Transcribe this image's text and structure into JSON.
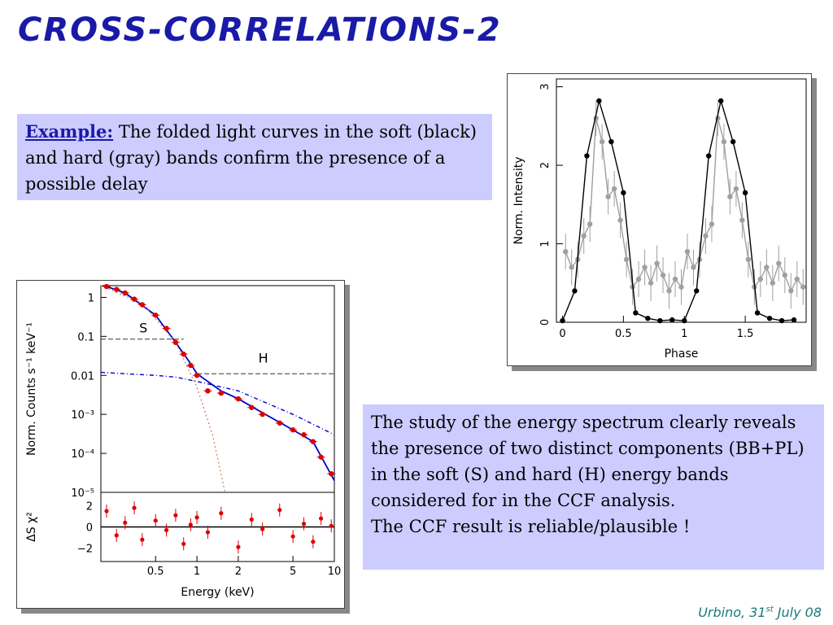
{
  "slide": {
    "title": "CROSS-CORRELATIONS-2",
    "footer_prefix": "Urbino, 31",
    "footer_sup": "st",
    "footer_suffix": " July 08"
  },
  "box1": {
    "lead": "Example:",
    "text": " The folded light curves in the soft (black) and hard (gray) bands confirm the presence of a possible delay"
  },
  "box2": {
    "text1": "The study of the energy spectrum clearly reveals the presence of two distinct components (BB+PL) in the soft (S) and hard (H) energy bands considered for in the CCF analysis.",
    "text2": "The CCF result is reliable/plausible !"
  },
  "colors": {
    "title": "#1a1aa8",
    "box": "#ccccff",
    "footer": "#1a7a7a"
  },
  "chart_data": [
    {
      "type": "line",
      "xlabel": "Phase",
      "ylabel": "Norm. Intensity",
      "xlim": [
        -0.05,
        2.0
      ],
      "ylim": [
        0,
        3.1
      ],
      "xticks": [
        "0",
        "0.5",
        "1",
        "1.5"
      ],
      "yticks": [
        "0",
        "1",
        "2",
        "3"
      ],
      "series": [
        {
          "color": "#000000",
          "x": [
            0,
            0.1,
            0.2,
            0.3,
            0.4,
            0.5,
            0.6,
            0.7,
            0.8,
            0.9,
            1.0,
            1.1,
            1.2,
            1.3,
            1.4,
            1.5,
            1.6,
            1.7,
            1.8,
            1.9
          ],
          "y": [
            0.02,
            0.4,
            2.12,
            2.82,
            2.3,
            1.65,
            0.12,
            0.05,
            0.02,
            0.03,
            0.02,
            0.4,
            2.12,
            2.82,
            2.3,
            1.65,
            0.12,
            0.05,
            0.02,
            0.03
          ]
        },
        {
          "color": "#a0a0a0",
          "x": [
            0.025,
            0.075,
            0.125,
            0.175,
            0.225,
            0.275,
            0.325,
            0.375,
            0.425,
            0.475,
            0.525,
            0.575,
            0.625,
            0.675,
            0.725,
            0.775,
            0.825,
            0.875,
            0.925,
            0.975,
            1.025,
            1.075,
            1.125,
            1.175,
            1.225,
            1.275,
            1.325,
            1.375,
            1.425,
            1.475,
            1.525,
            1.575,
            1.625,
            1.675,
            1.725,
            1.775,
            1.825,
            1.875,
            1.925,
            1.975
          ],
          "y": [
            0.9,
            0.7,
            0.8,
            1.1,
            1.25,
            2.6,
            2.3,
            1.6,
            1.7,
            1.3,
            0.8,
            0.45,
            0.55,
            0.7,
            0.5,
            0.75,
            0.6,
            0.4,
            0.55,
            0.45,
            0.9,
            0.7,
            0.8,
            1.1,
            1.25,
            2.6,
            2.3,
            1.6,
            1.7,
            1.3,
            0.8,
            0.45,
            0.55,
            0.7,
            0.5,
            0.75,
            0.6,
            0.4,
            0.55,
            0.45
          ]
        }
      ]
    },
    {
      "type": "scatter",
      "xlabel": "Energy (keV)",
      "ylabel": "Norm. Counts s⁻¹ keV⁻¹",
      "residual_label": "ΔS χ²",
      "xscale": "log",
      "yscale": "log",
      "xlim": [
        0.2,
        10
      ],
      "ylim": [
        1e-05,
        2
      ],
      "xticks": [
        "0.5",
        "1",
        "2",
        "5",
        "10"
      ],
      "yticks": [
        "1",
        "0.1",
        "0.01",
        "10⁻³",
        "10⁻⁴",
        "10⁻⁵"
      ],
      "residual_yticks": [
        "2",
        "0",
        "−2"
      ],
      "band_labels": [
        "S",
        "H"
      ],
      "bands": {
        "S": [
          0.2,
          0.8
        ],
        "H": [
          1.0,
          10
        ]
      },
      "series": [
        {
          "color": "#dd0000",
          "x": [
            0.22,
            0.26,
            0.3,
            0.35,
            0.4,
            0.5,
            0.6,
            0.7,
            0.8,
            0.9,
            1.0,
            1.2,
            1.5,
            2.0,
            2.5,
            3.0,
            4.0,
            5.0,
            6.0,
            7.0,
            8.0,
            9.5
          ],
          "y": [
            1.9,
            1.6,
            1.3,
            0.9,
            0.65,
            0.35,
            0.16,
            0.07,
            0.035,
            0.018,
            0.01,
            0.004,
            0.0035,
            0.0025,
            0.0015,
            0.001,
            0.0006,
            0.0004,
            0.0003,
            0.0002,
            8e-05,
            3e-05
          ]
        },
        {
          "color": "#0000cc",
          "x": [
            0.22,
            0.3,
            0.5,
            0.7,
            0.9,
            1.0,
            1.5,
            2.0,
            3.0,
            5.0,
            7.0,
            10.0
          ],
          "y": [
            1.9,
            1.3,
            0.35,
            0.07,
            0.02,
            0.011,
            0.004,
            0.0025,
            0.0011,
            0.0004,
            0.0002,
            2e-05
          ]
        },
        {
          "color": "#0000cc",
          "x": [
            0.2,
            0.3,
            0.5,
            0.7,
            1.0,
            2.0,
            5.0,
            10.0
          ],
          "y": [
            0.012,
            0.011,
            0.01,
            0.009,
            0.007,
            0.004,
            0.001,
            0.0003
          ]
        },
        {
          "color": "#cc8866",
          "x": [
            0.2,
            0.4,
            0.7,
            1.0,
            1.3,
            1.6
          ],
          "y": [
            2,
            0.7,
            0.07,
            0.005,
            0.0003,
            1e-05
          ]
        }
      ]
    }
  ]
}
